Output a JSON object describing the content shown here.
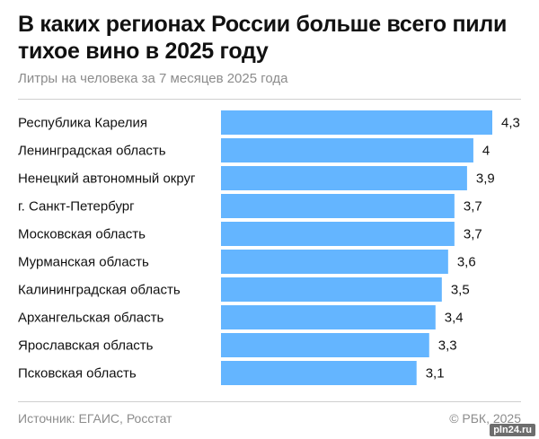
{
  "header": {
    "title": "В каких регионах России больше всего пили тихое вино в 2025 году",
    "subtitle": "Литры на человека за 7 месяцев 2025 года"
  },
  "footer": {
    "source": "Источник: ЕГАИС, Росстат",
    "copyright": "© РБК, 2025"
  },
  "watermark": "pln24.ru",
  "colors": {
    "bar": "#64b5ff",
    "text": "#111111",
    "muted": "#8c8c8c"
  },
  "chart_data": {
    "type": "bar",
    "orientation": "horizontal",
    "categories": [
      "Республика Карелия",
      "Ленинградская область",
      "Ненецкий автономный округ",
      "г. Санкт-Петербург",
      "Московская область",
      "Мурманская область",
      "Калининградская область",
      "Архангельская область",
      "Ярославская область",
      "Псковская область"
    ],
    "values": [
      4.3,
      4.0,
      3.9,
      3.7,
      3.7,
      3.6,
      3.5,
      3.4,
      3.3,
      3.1
    ],
    "value_labels": [
      "4,3",
      "4",
      "3,9",
      "3,7",
      "3,7",
      "3,6",
      "3,5",
      "3,4",
      "3,3",
      "3,1"
    ],
    "xlim": [
      0,
      4.3
    ],
    "grid": false,
    "legend": "none"
  }
}
